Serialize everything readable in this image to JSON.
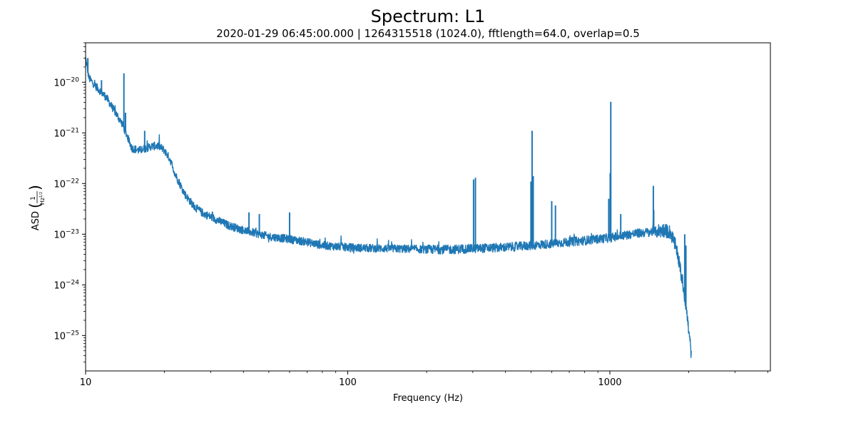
{
  "chart_data": {
    "type": "line",
    "title": "Spectrum: L1",
    "subtitle": "2020-01-29 06:45:00.000 | 1264315518 (1024.0), fftlength=64.0, overlap=0.5",
    "xlabel": "Frequency (Hz)",
    "ylabel": "ASD",
    "ylabel_unit": "1/Hz^1/2",
    "xscale": "log",
    "yscale": "log",
    "xlim": [
      10,
      4096
    ],
    "ylim": [
      2e-26,
      6e-20
    ],
    "grid": false,
    "legend": "none",
    "x_ticks": [
      {
        "value": 10,
        "label": "10"
      },
      {
        "value": 100,
        "label": "100"
      },
      {
        "value": 1000,
        "label": "1000"
      }
    ],
    "y_ticks": [
      {
        "value": 1e-20,
        "base": "10",
        "exp": "−20"
      },
      {
        "value": 1e-21,
        "base": "10",
        "exp": "−21"
      },
      {
        "value": 1e-22,
        "base": "10",
        "exp": "−22"
      },
      {
        "value": 1e-23,
        "base": "10",
        "exp": "−23"
      },
      {
        "value": 1e-24,
        "base": "10",
        "exp": "−24"
      },
      {
        "value": 1e-25,
        "base": "10",
        "exp": "−25"
      }
    ],
    "series": [
      {
        "color": "#1f77b4",
        "x": [
          10,
          10.3,
          11,
          12,
          13,
          13.8,
          14.5,
          15,
          16,
          17,
          18,
          19,
          20,
          21,
          22,
          24,
          26,
          28,
          30,
          35,
          40,
          50,
          60,
          70,
          80,
          100,
          120,
          150,
          200,
          250,
          300,
          400,
          500,
          600,
          700,
          800,
          1000,
          1200,
          1400,
          1600,
          1700,
          1800,
          1900,
          1950,
          2000,
          2048
        ],
        "y": [
          3e-20,
          1.2e-20,
          8e-21,
          5e-21,
          2.5e-21,
          1.5e-21,
          8e-22,
          5e-22,
          4.5e-22,
          5e-22,
          5.5e-22,
          5.5e-22,
          4.5e-22,
          3e-22,
          1.5e-22,
          6e-23,
          3.5e-23,
          2.6e-23,
          2.2e-23,
          1.5e-23,
          1.2e-23,
          9e-24,
          8e-24,
          7e-24,
          6e-24,
          5.5e-24,
          5.3e-24,
          5.2e-24,
          5e-24,
          5e-24,
          5.2e-24,
          5.5e-24,
          6e-24,
          6.5e-24,
          7e-24,
          7.5e-24,
          8.5e-24,
          1e-23,
          1.1e-23,
          1.2e-23,
          1.1e-23,
          5e-24,
          1e-24,
          4e-25,
          1.2e-25,
          4e-26
        ],
        "spikes": [
          {
            "x": 10.2,
            "y": 3e-20
          },
          {
            "x": 11.5,
            "y": 1.1e-20
          },
          {
            "x": 14.0,
            "y": 1.5e-20
          },
          {
            "x": 14.2,
            "y": 2.5e-21
          },
          {
            "x": 16.8,
            "y": 1.1e-21
          },
          {
            "x": 42,
            "y": 2.7e-23
          },
          {
            "x": 46,
            "y": 2.5e-23
          },
          {
            "x": 60,
            "y": 2.7e-23
          },
          {
            "x": 302,
            "y": 1.2e-22
          },
          {
            "x": 307,
            "y": 1.3e-22
          },
          {
            "x": 500,
            "y": 1.1e-22
          },
          {
            "x": 505,
            "y": 1.1e-21
          },
          {
            "x": 510,
            "y": 1.4e-22
          },
          {
            "x": 600,
            "y": 4.5e-23
          },
          {
            "x": 620,
            "y": 3.7e-23
          },
          {
            "x": 990,
            "y": 5e-23
          },
          {
            "x": 1003,
            "y": 1.6e-22
          },
          {
            "x": 1008,
            "y": 4.1e-21
          },
          {
            "x": 1100,
            "y": 2.5e-23
          },
          {
            "x": 1465,
            "y": 9e-23
          },
          {
            "x": 1470,
            "y": 3e-23
          },
          {
            "x": 1930,
            "y": 1e-23
          },
          {
            "x": 1950,
            "y": 6e-24
          }
        ]
      }
    ]
  }
}
